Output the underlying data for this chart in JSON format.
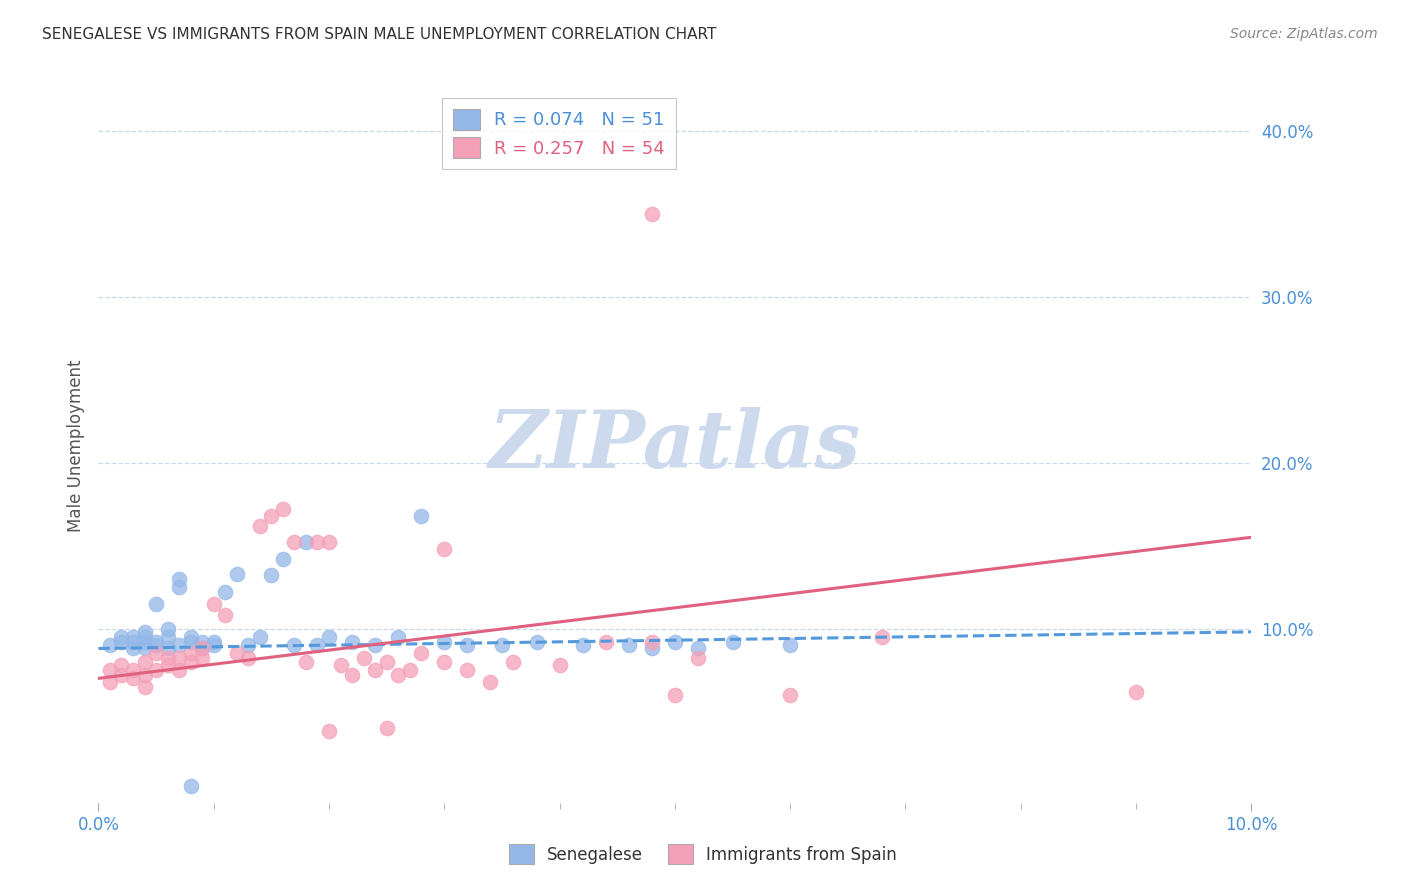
{
  "title": "SENEGALESE VS IMMIGRANTS FROM SPAIN MALE UNEMPLOYMENT CORRELATION CHART",
  "source": "Source: ZipAtlas.com",
  "ylabel": "Male Unemployment",
  "ylabel_right_ticks": [
    "40.0%",
    "30.0%",
    "20.0%",
    "10.0%"
  ],
  "ylabel_right_values": [
    0.4,
    0.3,
    0.2,
    0.1
  ],
  "xlim": [
    0.0,
    0.1
  ],
  "ylim": [
    -0.005,
    0.425
  ],
  "blue_color": "#93b8e8",
  "pink_color": "#f4a0b8",
  "blue_line_color": "#5599dd",
  "pink_line_color": "#e06080",
  "axis_label_color": "#4a90d9",
  "grid_color": "#c8d8ea",
  "watermark_color": "#cddaed",
  "title_color": "#333333",
  "source_color": "#888888",
  "legend_blue_label": "R = 0.074   N = 51",
  "legend_pink_label": "R = 0.257   N = 54",
  "legend_blue_color": "#4a90d9",
  "legend_pink_color": "#e06080",
  "bottom_legend_blue": "Senegalese",
  "bottom_legend_pink": "Immigrants from Spain",
  "senegalese_x": [
    0.001,
    0.002,
    0.002,
    0.003,
    0.003,
    0.003,
    0.004,
    0.004,
    0.004,
    0.004,
    0.005,
    0.005,
    0.005,
    0.006,
    0.006,
    0.006,
    0.007,
    0.007,
    0.007,
    0.008,
    0.008,
    0.009,
    0.009,
    0.01,
    0.01,
    0.011,
    0.012,
    0.013,
    0.014,
    0.015,
    0.016,
    0.017,
    0.018,
    0.019,
    0.02,
    0.022,
    0.024,
    0.026,
    0.028,
    0.032,
    0.035,
    0.038,
    0.042,
    0.046,
    0.05,
    0.052,
    0.055,
    0.06,
    0.048,
    0.03,
    0.008
  ],
  "senegalese_y": [
    0.09,
    0.092,
    0.095,
    0.088,
    0.092,
    0.095,
    0.092,
    0.088,
    0.095,
    0.098,
    0.09,
    0.092,
    0.115,
    0.088,
    0.095,
    0.1,
    0.125,
    0.13,
    0.09,
    0.092,
    0.095,
    0.088,
    0.092,
    0.09,
    0.092,
    0.122,
    0.133,
    0.09,
    0.095,
    0.132,
    0.142,
    0.09,
    0.152,
    0.09,
    0.095,
    0.092,
    0.09,
    0.095,
    0.168,
    0.09,
    0.09,
    0.092,
    0.09,
    0.09,
    0.092,
    0.088,
    0.092,
    0.09,
    0.088,
    0.092,
    0.005
  ],
  "spain_x": [
    0.001,
    0.001,
    0.002,
    0.002,
    0.003,
    0.003,
    0.004,
    0.004,
    0.004,
    0.005,
    0.005,
    0.006,
    0.006,
    0.007,
    0.007,
    0.008,
    0.008,
    0.009,
    0.009,
    0.01,
    0.011,
    0.012,
    0.013,
    0.014,
    0.015,
    0.016,
    0.017,
    0.018,
    0.019,
    0.02,
    0.021,
    0.022,
    0.023,
    0.024,
    0.025,
    0.026,
    0.027,
    0.028,
    0.03,
    0.032,
    0.034,
    0.036,
    0.04,
    0.044,
    0.048,
    0.052,
    0.06,
    0.068,
    0.048,
    0.03,
    0.02,
    0.025,
    0.05,
    0.09
  ],
  "spain_y": [
    0.068,
    0.075,
    0.072,
    0.078,
    0.07,
    0.075,
    0.065,
    0.072,
    0.08,
    0.075,
    0.085,
    0.078,
    0.082,
    0.075,
    0.082,
    0.08,
    0.085,
    0.082,
    0.088,
    0.115,
    0.108,
    0.085,
    0.082,
    0.162,
    0.168,
    0.172,
    0.152,
    0.08,
    0.152,
    0.152,
    0.078,
    0.072,
    0.082,
    0.075,
    0.08,
    0.072,
    0.075,
    0.085,
    0.08,
    0.075,
    0.068,
    0.08,
    0.078,
    0.092,
    0.092,
    0.082,
    0.06,
    0.095,
    0.35,
    0.148,
    0.038,
    0.04,
    0.06,
    0.062
  ],
  "blue_trend_x": [
    0.0,
    0.1
  ],
  "blue_trend_y": [
    0.088,
    0.098
  ],
  "pink_trend_x": [
    0.0,
    0.1
  ],
  "pink_trend_y": [
    0.07,
    0.155
  ]
}
